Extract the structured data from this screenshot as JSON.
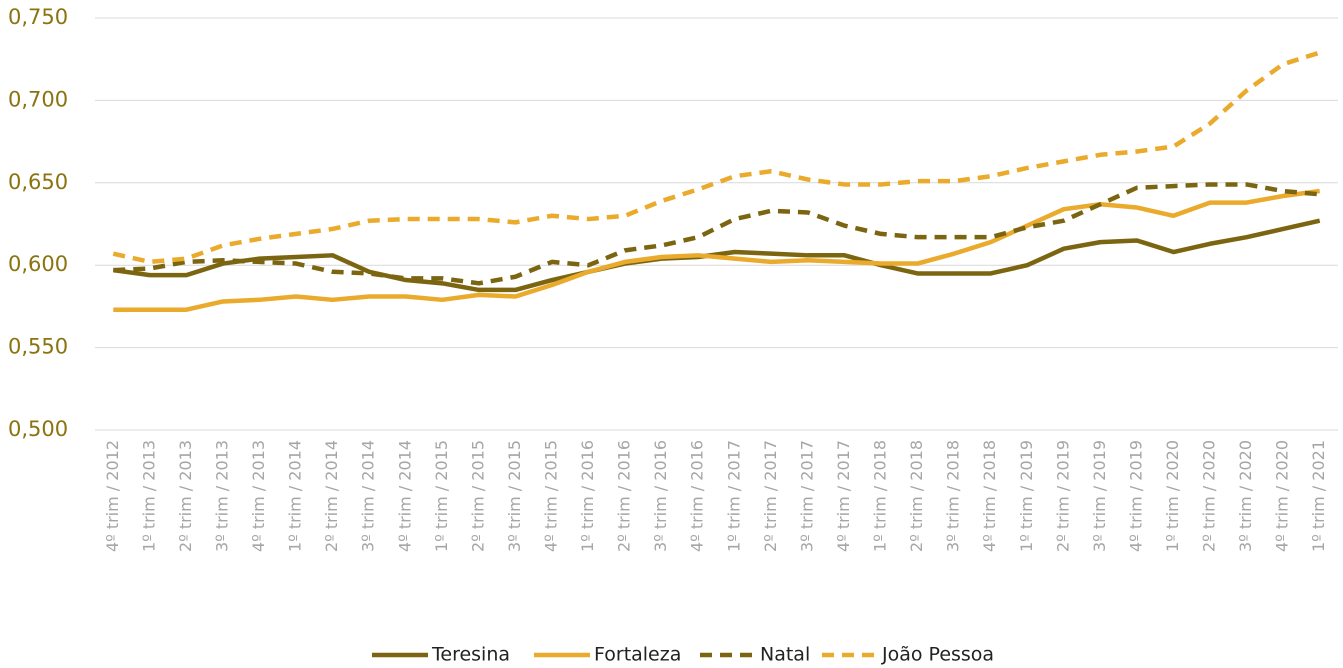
{
  "chart_data": {
    "type": "line",
    "categories": [
      "4º trim / 2012",
      "1º trim / 2013",
      "2º trim / 2013",
      "3º trim / 2013",
      "4º trim / 2013",
      "1º trim / 2014",
      "2º trim / 2014",
      "3º trim / 2014",
      "4º trim / 2014",
      "1º trim / 2015",
      "2º trim / 2015",
      "3º trim / 2015",
      "4º trim / 2015",
      "1º trim / 2016",
      "2º trim / 2016",
      "3º trim / 2016",
      "4º trim / 2016",
      "1º trim / 2017",
      "2º trim / 2017",
      "3º trim / 2017",
      "4º trim / 2017",
      "1º trim / 2018",
      "2º trim / 2018",
      "3º trim / 2018",
      "4º trim / 2018",
      "1º trim / 2019",
      "2º trim / 2019",
      "3º trim / 2019",
      "4º trim / 2019",
      "1º trim / 2020",
      "2º trim / 2020",
      "3º trim / 2020",
      "4º trim / 2020",
      "1º trim / 2021"
    ],
    "series": [
      {
        "name": "Teresina",
        "color": "#7b6511",
        "dash": false,
        "values": [
          0.597,
          0.594,
          0.594,
          0.601,
          0.604,
          0.605,
          0.606,
          0.596,
          0.591,
          0.589,
          0.585,
          0.585,
          0.591,
          0.596,
          0.601,
          0.604,
          0.605,
          0.608,
          0.607,
          0.606,
          0.606,
          0.6,
          0.595,
          0.595,
          0.595,
          0.6,
          0.61,
          0.614,
          0.615,
          0.608,
          0.613,
          0.617,
          0.622,
          0.627
        ]
      },
      {
        "name": "Fortaleza",
        "color": "#eaaa2c",
        "dash": false,
        "values": [
          0.573,
          0.573,
          0.573,
          0.578,
          0.579,
          0.581,
          0.579,
          0.581,
          0.581,
          0.579,
          0.582,
          0.581,
          0.588,
          0.596,
          0.602,
          0.605,
          0.606,
          0.604,
          0.602,
          0.603,
          0.602,
          0.601,
          0.601,
          0.607,
          0.614,
          0.624,
          0.634,
          0.637,
          0.635,
          0.63,
          0.638,
          0.638,
          0.642,
          0.645
        ]
      },
      {
        "name": "Natal",
        "color": "#7b6511",
        "dash": true,
        "values": [
          0.597,
          0.598,
          0.602,
          0.603,
          0.602,
          0.601,
          0.596,
          0.595,
          0.592,
          0.592,
          0.589,
          0.593,
          0.602,
          0.6,
          0.609,
          0.612,
          0.617,
          0.628,
          0.633,
          0.632,
          0.624,
          0.619,
          0.617,
          0.617,
          0.617,
          0.623,
          0.627,
          0.637,
          0.647,
          0.648,
          0.649,
          0.649,
          0.645,
          0.643
        ]
      },
      {
        "name": "João Pessoa",
        "color": "#eaaa2c",
        "dash": true,
        "values": [
          0.607,
          0.602,
          0.604,
          0.612,
          0.616,
          0.619,
          0.622,
          0.627,
          0.628,
          0.628,
          0.628,
          0.626,
          0.63,
          0.628,
          0.63,
          0.639,
          0.646,
          0.654,
          0.657,
          0.652,
          0.649,
          0.649,
          0.651,
          0.651,
          0.654,
          0.659,
          0.663,
          0.667,
          0.669,
          0.672,
          0.686,
          0.706,
          0.722,
          0.729
        ]
      }
    ],
    "ylim": [
      0.5,
      0.75
    ],
    "yticks": [
      {
        "value": 0.5,
        "label": "0,500"
      },
      {
        "value": 0.55,
        "label": "0,550"
      },
      {
        "value": 0.6,
        "label": "0,600"
      },
      {
        "value": 0.65,
        "label": "0,650"
      },
      {
        "value": 0.7,
        "label": "0,700"
      },
      {
        "value": 0.75,
        "label": "0,750"
      }
    ],
    "grid": true,
    "legend": "bottom"
  }
}
